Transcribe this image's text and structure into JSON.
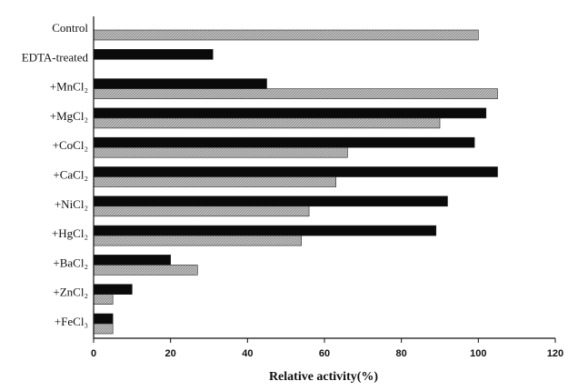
{
  "chart_data": {
    "type": "bar",
    "orientation": "horizontal",
    "categories": [
      "Control",
      "EDTA-treated",
      "+MnCl₂",
      "+MgCl₂",
      "+CoCl₂",
      "+CaCl₂",
      "+NiCl₂",
      "+HgCl₂",
      "+BaCl₂",
      "+ZnCl₂",
      "+FeCl₃"
    ],
    "series": [
      {
        "values": [
          null,
          31,
          45,
          102,
          99,
          105,
          92,
          89,
          20,
          10,
          5
        ],
        "color": "#0a0a0a"
      },
      {
        "values": [
          100,
          null,
          105,
          90,
          66,
          63,
          56,
          54,
          27,
          5,
          5
        ],
        "color": "#bdbdbd"
      }
    ],
    "title": "",
    "xlabel": "Relative activity(%)",
    "ylabel": "",
    "xlim": [
      0,
      120
    ],
    "xticks": [
      "0",
      "20",
      "40",
      "60",
      "80",
      "100",
      "120"
    ],
    "grid": false,
    "legend": "none"
  }
}
